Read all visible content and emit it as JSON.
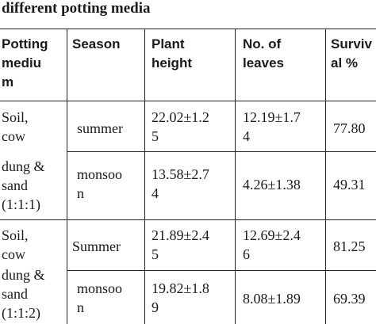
{
  "caption": "different potting media",
  "headers": {
    "medium": "Potting\nmediu\nm",
    "season": "Season",
    "height": "Plant\nheight",
    "leaves": "No. of\nleaves",
    "survival": "Surviv\nal %"
  },
  "rows": [
    {
      "medium": "Soil,\ncow",
      "season": "summer",
      "height": "22.02±1.2\n5",
      "leaves": "12.19±1.7\n4",
      "survival": "77.80"
    },
    {
      "medium": "dung &\nsand\n(1:1:1)",
      "season": "monsoo\nn",
      "height": "13.58±2.7\n4",
      "leaves": "4.26±1.38",
      "survival": "49.31"
    },
    {
      "medium": "Soil,\ncow",
      "season": "Summer",
      "height": "21.89±2.4\n5",
      "leaves": "12.69±2.4\n6",
      "survival": "81.25"
    },
    {
      "medium": "dung &\nsand\n(1:1:2)",
      "season": "monsoo\nn",
      "height": "19.82±1.8\n9",
      "leaves": "8.08±1.89",
      "survival": "69.39"
    }
  ]
}
